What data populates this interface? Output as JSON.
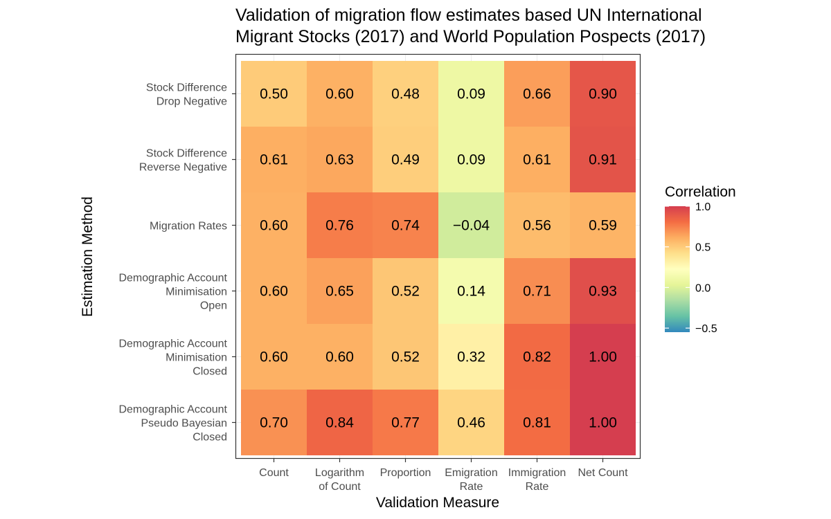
{
  "chart_data": {
    "type": "heatmap",
    "title_lines": [
      "Validation of migration flow estimates based UN International",
      "Migrant Stocks (2017) and World Population Pospects (2017)"
    ],
    "xlabel": "Validation Measure",
    "ylabel": "Estimation Method",
    "x_categories": [
      [
        "Count"
      ],
      [
        "Logarithm",
        "of Count"
      ],
      [
        "Proportion"
      ],
      [
        "Emigration",
        "Rate"
      ],
      [
        "Immigration",
        "Rate"
      ],
      [
        "Net Count"
      ]
    ],
    "y_categories": [
      [
        "Stock Difference",
        "Drop Negative"
      ],
      [
        "Stock Difference",
        "Reverse Negative"
      ],
      [
        "Migration Rates"
      ],
      [
        "Demographic Account",
        "Minimisation",
        "Open"
      ],
      [
        "Demographic Account",
        "Minimisation",
        "Closed"
      ],
      [
        "Demographic Account",
        "Pseudo Bayesian",
        "Closed"
      ]
    ],
    "values": [
      [
        0.5,
        0.6,
        0.48,
        0.09,
        0.66,
        0.9
      ],
      [
        0.61,
        0.63,
        0.49,
        0.09,
        0.61,
        0.91
      ],
      [
        0.6,
        0.76,
        0.74,
        -0.04,
        0.56,
        0.59
      ],
      [
        0.6,
        0.65,
        0.52,
        0.14,
        0.71,
        0.93
      ],
      [
        0.6,
        0.6,
        0.52,
        0.32,
        0.82,
        1.0
      ],
      [
        0.7,
        0.84,
        0.77,
        0.46,
        0.81,
        1.0
      ]
    ],
    "value_labels": [
      [
        "0.50",
        "0.60",
        "0.48",
        "0.09",
        "0.66",
        "0.90"
      ],
      [
        "0.61",
        "0.63",
        "0.49",
        "0.09",
        "0.61",
        "0.91"
      ],
      [
        "0.60",
        "0.76",
        "0.74",
        "−0.04",
        "0.56",
        "0.59"
      ],
      [
        "0.60",
        "0.65",
        "0.52",
        "0.14",
        "0.71",
        "0.93"
      ],
      [
        "0.60",
        "0.60",
        "0.52",
        "0.32",
        "0.82",
        "1.00"
      ],
      [
        "0.70",
        "0.84",
        "0.77",
        "0.46",
        "0.81",
        "1.00"
      ]
    ],
    "legend": {
      "title": "Correlation",
      "ticks": [
        1.0,
        0.5,
        0.0,
        -0.5
      ],
      "tick_labels": [
        "1.0",
        "0.5",
        "0.0",
        "−0.5"
      ],
      "range": [
        -0.55,
        1.0
      ],
      "palette": "Spectral",
      "placement": "right"
    },
    "grid": true,
    "colors": {
      "panel_border": "#333333",
      "grid": "#ebebeb",
      "palette_stops": [
        "#3288bd",
        "#66c2a5",
        "#abdda4",
        "#e6f598",
        "#ffffbf",
        "#fee08b",
        "#fdae61",
        "#f46d43",
        "#d53e4f"
      ]
    }
  }
}
